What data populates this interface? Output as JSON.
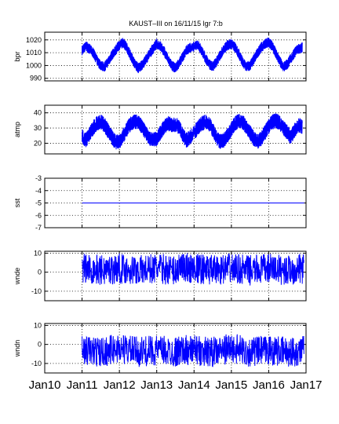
{
  "title": "KAUST–III on 16/11/15 lgr 7:b",
  "chart_data": [
    {
      "type": "line",
      "ylabel": "bpr",
      "ylim": [
        988,
        1026
      ],
      "yticks": [
        990,
        1000,
        1010,
        1020
      ],
      "xlim": [
        2010.0,
        2017.0
      ],
      "xticks": [
        "Jan10",
        "Jan11",
        "Jan12",
        "Jan13",
        "Jan14",
        "Jan15",
        "Jan16",
        "Jan17"
      ],
      "grid": true,
      "series": [
        {
          "color": "#0000ff",
          "x": [
            2011.0,
            2011.1,
            2011.2,
            2011.3,
            2011.4,
            2011.5,
            2011.6,
            2011.7,
            2011.8,
            2011.9,
            2012.0,
            2012.1,
            2012.2,
            2012.3,
            2012.4,
            2012.5,
            2012.6,
            2012.7,
            2012.8,
            2012.9,
            2013.0,
            2013.1,
            2013.2,
            2013.3,
            2013.4,
            2013.5,
            2013.6,
            2013.7,
            2013.8,
            2013.9,
            2014.1,
            2014.2,
            2014.3,
            2014.4,
            2014.5,
            2014.6,
            2014.7,
            2014.8,
            2014.9,
            2015.0,
            2015.1,
            2015.2,
            2015.3,
            2015.4,
            2015.5,
            2015.6,
            2015.7,
            2015.8,
            2015.9,
            2016.0,
            2016.1,
            2016.2,
            2016.3,
            2016.4,
            2016.5,
            2016.6,
            2016.7,
            2016.8,
            2016.9
          ],
          "y": [
            1012,
            1015,
            1013,
            1010,
            1004,
            1000,
            999,
            1003,
            1008,
            1012,
            1016,
            1018,
            1014,
            1008,
            1002,
            998,
            1000,
            1004,
            1009,
            1013,
            1017,
            1015,
            1011,
            1005,
            1000,
            998,
            1002,
            1007,
            1012,
            1014,
            1016,
            1012,
            1006,
            1001,
            999,
            1003,
            1008,
            1013,
            1016,
            1017,
            1014,
            1009,
            1003,
            999,
            1000,
            1005,
            1010,
            1014,
            1017,
            1018,
            1015,
            1009,
            1003,
            999,
            1001,
            1006,
            1010,
            1013,
            1014
          ],
          "band": 4
        }
      ]
    },
    {
      "type": "line",
      "ylabel": "atmp",
      "ylim": [
        13,
        45
      ],
      "yticks": [
        20,
        30,
        40
      ],
      "xlim": [
        2010.0,
        2017.0
      ],
      "xticks": [
        "Jan10",
        "Jan11",
        "Jan12",
        "Jan13",
        "Jan14",
        "Jan15",
        "Jan16",
        "Jan17"
      ],
      "grid": true,
      "series": [
        {
          "color": "#0000ff",
          "x": [
            2011.0,
            2011.1,
            2011.2,
            2011.3,
            2011.4,
            2011.5,
            2011.6,
            2011.7,
            2011.8,
            2011.9,
            2012.0,
            2012.1,
            2012.2,
            2012.3,
            2012.4,
            2012.5,
            2012.6,
            2012.7,
            2012.8,
            2012.9,
            2013.0,
            2013.1,
            2013.2,
            2013.3,
            2013.4,
            2013.5,
            2013.6,
            2013.7,
            2013.8,
            2013.9,
            2014.1,
            2014.2,
            2014.3,
            2014.4,
            2014.5,
            2014.6,
            2014.7,
            2014.8,
            2014.9,
            2015.0,
            2015.1,
            2015.2,
            2015.3,
            2015.4,
            2015.5,
            2015.6,
            2015.7,
            2015.8,
            2015.9,
            2016.0,
            2016.1,
            2016.2,
            2016.3,
            2016.4,
            2016.5,
            2016.6,
            2016.7,
            2016.8,
            2016.9
          ],
          "y": [
            25,
            22,
            26,
            30,
            33,
            34,
            32,
            28,
            24,
            21,
            21,
            25,
            29,
            33,
            34,
            34,
            31,
            27,
            23,
            22,
            23,
            27,
            31,
            33,
            32,
            32,
            31,
            25,
            22,
            24,
            30,
            33,
            34,
            33,
            29,
            24,
            21,
            22,
            25,
            29,
            33,
            35,
            34,
            31,
            27,
            23,
            21,
            23,
            27,
            31,
            34,
            35,
            33,
            30,
            27,
            24,
            29,
            32,
            31
          ],
          "band": 5
        }
      ]
    },
    {
      "type": "line",
      "ylabel": "sst",
      "ylim": [
        -7,
        -3
      ],
      "yticks": [
        -7,
        -6,
        -5,
        -4,
        -3
      ],
      "xlim": [
        2010.0,
        2017.0
      ],
      "xticks": [
        "Jan10",
        "Jan11",
        "Jan12",
        "Jan13",
        "Jan14",
        "Jan15",
        "Jan16",
        "Jan17"
      ],
      "grid": true,
      "series": [
        {
          "color": "#0000ff",
          "x": [
            2011.0,
            2016.95
          ],
          "y": [
            -5,
            -5
          ],
          "band": 0
        }
      ]
    },
    {
      "type": "line",
      "ylabel": "wnde",
      "ylim": [
        -15,
        11
      ],
      "yticks": [
        -10,
        0,
        10
      ],
      "xlim": [
        2010.0,
        2017.0
      ],
      "xticks": [
        "Jan10",
        "Jan11",
        "Jan12",
        "Jan13",
        "Jan14",
        "Jan15",
        "Jan16",
        "Jan17"
      ],
      "grid": true,
      "series": [
        {
          "color": "#0000ff",
          "x": [
            2011.0,
            2011.5,
            2012.0,
            2012.5,
            2013.0,
            2013.5,
            2013.8,
            2014.1,
            2014.5,
            2015.0,
            2015.5,
            2016.0,
            2016.5,
            2016.95
          ],
          "y": [
            2,
            1,
            2,
            1,
            2,
            1,
            2,
            2,
            1,
            2,
            1,
            2,
            1,
            2
          ],
          "band": 8
        }
      ]
    },
    {
      "type": "line",
      "ylabel": "wndn",
      "ylim": [
        -15,
        11
      ],
      "yticks": [
        -10,
        0,
        10
      ],
      "xlim": [
        2010.0,
        2017.0
      ],
      "xticks": [
        "Jan10",
        "Jan11",
        "Jan12",
        "Jan13",
        "Jan14",
        "Jan15",
        "Jan16",
        "Jan17"
      ],
      "grid": true,
      "series": [
        {
          "color": "#0000ff",
          "x": [
            2011.0,
            2011.5,
            2012.0,
            2012.5,
            2013.0,
            2013.5,
            2013.8,
            2014.1,
            2014.5,
            2015.0,
            2015.5,
            2016.0,
            2016.5,
            2016.95
          ],
          "y": [
            -3,
            -4,
            -2,
            -4,
            -3,
            -4,
            -3,
            -3,
            -4,
            -2,
            -4,
            -3,
            -4,
            -3
          ],
          "band": 8
        }
      ]
    }
  ]
}
